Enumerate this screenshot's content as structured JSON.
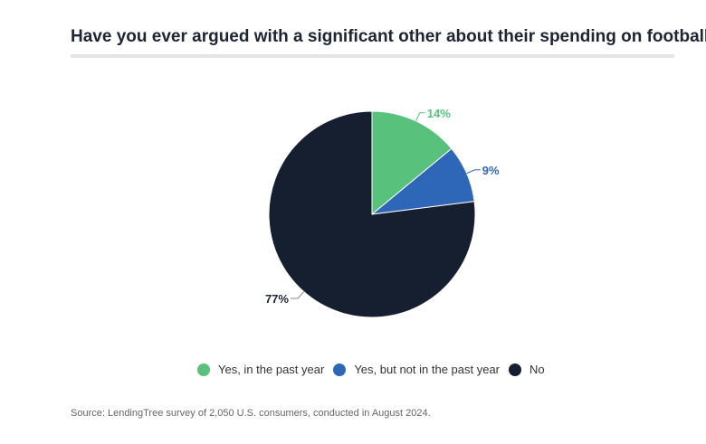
{
  "chart_data": {
    "type": "pie",
    "title": "Have you ever argued with a significant other about their spending on football?",
    "slices": [
      {
        "label": "Yes, in the past year",
        "value": 14,
        "display": "14%",
        "color": "#58c17c"
      },
      {
        "label": "Yes, but not in the past year",
        "value": 9,
        "display": "9%",
        "color": "#2e66b8"
      },
      {
        "label": "No",
        "value": 77,
        "display": "77%",
        "color": "#151f30"
      }
    ],
    "legend_position": "bottom",
    "source": "Source: LendingTree survey of 2,050 U.S. consumers, conducted in August 2024."
  }
}
